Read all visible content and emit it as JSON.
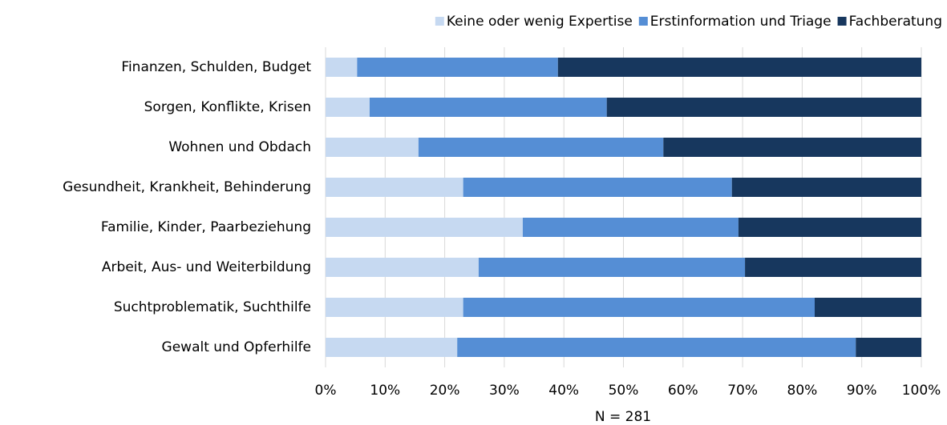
{
  "chart_data": {
    "type": "bar",
    "orientation": "horizontal",
    "stacked": true,
    "categories": [
      "Finanzen, Schulden, Budget",
      "Sorgen, Konflikte, Krisen",
      "Wohnen und Obdach",
      "Gesundheit, Krankheit, Behinderung",
      "Familie, Kinder, Paarbeziehung",
      "Arbeit, Aus- und Weiterbildung",
      "Suchtproblematik, Suchthilfe",
      "Gewalt und Opferhilfe"
    ],
    "series": [
      {
        "name": "Keine oder wenig Expertise",
        "color": "#c6d9f1",
        "values": [
          5.3,
          7.4,
          15.6,
          23.1,
          33.1,
          25.7,
          23.1,
          22.1
        ]
      },
      {
        "name": "Erstinformation und Triage",
        "color": "#558ed5",
        "values": [
          33.7,
          39.8,
          41.1,
          45.1,
          36.2,
          44.7,
          59.0,
          66.9
        ]
      },
      {
        "name": "Fachberatung",
        "color": "#17375e",
        "values": [
          61.0,
          52.8,
          43.3,
          31.8,
          30.7,
          29.6,
          17.9,
          11.0
        ]
      }
    ],
    "xlabel": "N = 281",
    "xlim": [
      0,
      100
    ],
    "xticks": [
      {
        "value": 0,
        "label": "0%"
      },
      {
        "value": 10,
        "label": "10%"
      },
      {
        "value": 20,
        "label": "20%"
      },
      {
        "value": 30,
        "label": "30%"
      },
      {
        "value": 40,
        "label": "40%"
      },
      {
        "value": 50,
        "label": "50%"
      },
      {
        "value": 60,
        "label": "60%"
      },
      {
        "value": 70,
        "label": "70%"
      },
      {
        "value": 80,
        "label": "80%"
      },
      {
        "value": 90,
        "label": "90%"
      },
      {
        "value": 100,
        "label": "100%"
      }
    ],
    "grid": true,
    "legend": "top"
  }
}
